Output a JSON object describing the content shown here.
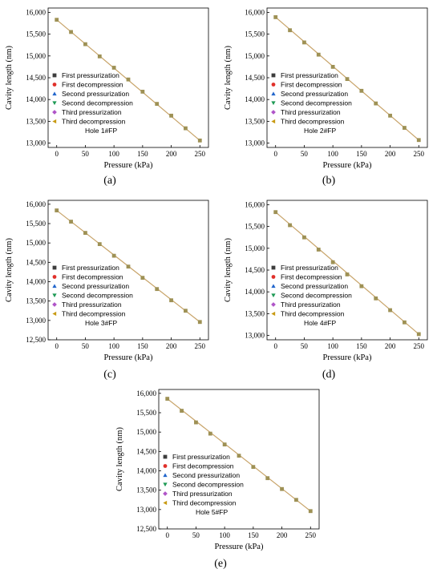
{
  "colors": {
    "fit_line": "#c8a46a",
    "marker_main": "#9e9155",
    "first_pressurization": "#3d3d3d",
    "first_decompression": "#e0302a",
    "second_pressurization": "#2266cc",
    "second_decompression": "#1e9a55",
    "third_pressurization": "#b055c8",
    "third_decompression": "#c89a12"
  },
  "legend": [
    {
      "label": "First pressurization",
      "marker": "square",
      "color_key": "first_pressurization"
    },
    {
      "label": "First decompression",
      "marker": "circle",
      "color_key": "first_decompression"
    },
    {
      "label": "Second pressurization",
      "marker": "triangle-up",
      "color_key": "second_pressurization"
    },
    {
      "label": "Second decompression",
      "marker": "triangle-down",
      "color_key": "second_decompression"
    },
    {
      "label": "Third pressurization",
      "marker": "diamond",
      "color_key": "third_pressurization"
    },
    {
      "label": "Third decompression",
      "marker": "triangle-left",
      "color_key": "third_decompression"
    }
  ],
  "chart_data": [
    {
      "type": "scatter",
      "panel_label": "(a)",
      "annotation": "Hole 1#FP",
      "xlabel": "Pressure (kPa)",
      "ylabel": "Cavity length (nm)",
      "xlim": [
        -15,
        265
      ],
      "ylim": [
        12900,
        16100
      ],
      "xticks": [
        0,
        50,
        100,
        150,
        200,
        250
      ],
      "yticks": [
        13000,
        13500,
        14000,
        14500,
        15000,
        15500,
        16000
      ],
      "ytick_labels": [
        "13,000",
        "13,500",
        "14,000",
        "14,500",
        "15,000",
        "15,500",
        "16,000"
      ],
      "x": [
        0,
        25,
        50,
        75,
        100,
        125,
        150,
        175,
        200,
        225,
        250
      ],
      "y": [
        15830,
        15550,
        15270,
        14990,
        14730,
        14460,
        14180,
        13900,
        13630,
        13340,
        13060
      ]
    },
    {
      "type": "scatter",
      "panel_label": "(b)",
      "annotation": "Hole 2#FP",
      "xlabel": "Pressure (kPa)",
      "ylabel": "Cavity length (nm)",
      "xlim": [
        -15,
        265
      ],
      "ylim": [
        12900,
        16100
      ],
      "xticks": [
        0,
        50,
        100,
        150,
        200,
        250
      ],
      "yticks": [
        13000,
        13500,
        14000,
        14500,
        15000,
        15500,
        16000
      ],
      "ytick_labels": [
        "13,000",
        "13,500",
        "14,000",
        "14,500",
        "15,000",
        "15,500",
        "16,000"
      ],
      "x": [
        0,
        25,
        50,
        75,
        100,
        125,
        150,
        175,
        200,
        225,
        250
      ],
      "y": [
        15890,
        15590,
        15310,
        15030,
        14750,
        14470,
        14200,
        13910,
        13630,
        13350,
        13070
      ]
    },
    {
      "type": "scatter",
      "panel_label": "(c)",
      "annotation": "Hole 3#FP",
      "xlabel": "Pressure (kPa)",
      "ylabel": "Cavity length (nm)",
      "xlim": [
        -15,
        265
      ],
      "ylim": [
        12500,
        16100
      ],
      "xticks": [
        0,
        50,
        100,
        150,
        200,
        250
      ],
      "yticks": [
        12500,
        13000,
        13500,
        14000,
        14500,
        15000,
        15500,
        16000
      ],
      "ytick_labels": [
        "12,500",
        "13,000",
        "13,500",
        "14,000",
        "14,500",
        "15,000",
        "15,500",
        "16,000"
      ],
      "x": [
        0,
        25,
        50,
        75,
        100,
        125,
        150,
        175,
        200,
        225,
        250
      ],
      "y": [
        15840,
        15550,
        15260,
        14970,
        14670,
        14390,
        14100,
        13810,
        13520,
        13250,
        12960
      ]
    },
    {
      "type": "scatter",
      "panel_label": "(d)",
      "annotation": "Hole 4#FP",
      "xlabel": "Pressure (kPa)",
      "ylabel": "Cavity length (nm)",
      "xlim": [
        -15,
        265
      ],
      "ylim": [
        12900,
        16100
      ],
      "xticks": [
        0,
        50,
        100,
        150,
        200,
        250
      ],
      "yticks": [
        13000,
        13500,
        14000,
        14500,
        15000,
        15500,
        16000
      ],
      "ytick_labels": [
        "13,000",
        "13,500",
        "14,000",
        "14,500",
        "15,000",
        "15,500",
        "16,000"
      ],
      "x": [
        0,
        25,
        50,
        75,
        100,
        125,
        150,
        175,
        200,
        225,
        250
      ],
      "y": [
        15830,
        15530,
        15250,
        14970,
        14680,
        14400,
        14130,
        13850,
        13580,
        13300,
        13030
      ]
    },
    {
      "type": "scatter",
      "panel_label": "(e)",
      "annotation": "Hole 5#FP",
      "xlabel": "Pressure (kPa)",
      "ylabel": "Cavity length (nm)",
      "xlim": [
        -15,
        265
      ],
      "ylim": [
        12500,
        16100
      ],
      "xticks": [
        0,
        50,
        100,
        150,
        200,
        250
      ],
      "yticks": [
        12500,
        13000,
        13500,
        14000,
        14500,
        15000,
        15500,
        16000
      ],
      "ytick_labels": [
        "12,500",
        "13,000",
        "13,500",
        "14,000",
        "14,500",
        "15,000",
        "15,500",
        "16,000"
      ],
      "x": [
        0,
        25,
        50,
        75,
        100,
        125,
        150,
        175,
        200,
        225,
        250
      ],
      "y": [
        15860,
        15550,
        15250,
        14960,
        14680,
        14390,
        14100,
        13810,
        13530,
        13250,
        12960
      ]
    }
  ]
}
